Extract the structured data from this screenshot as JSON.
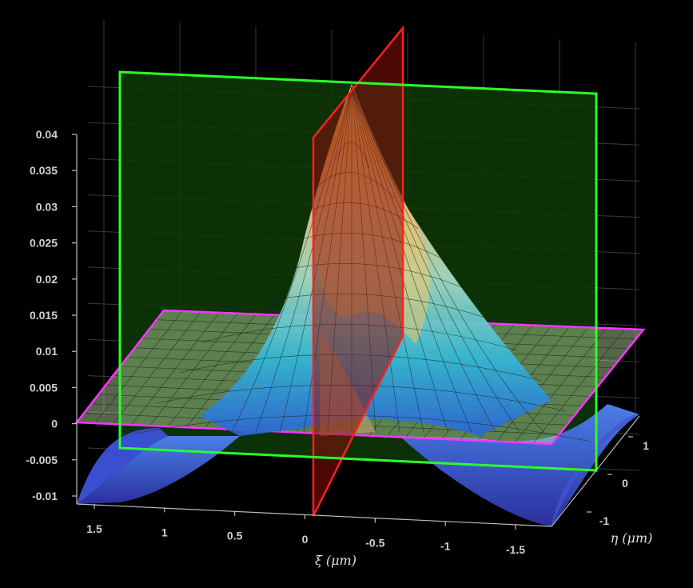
{
  "chart_data": {
    "type": "surface",
    "title": "",
    "xlabel": "ξ (μm)",
    "ylabel": "η (μm)",
    "zlabel": "",
    "x_ticks": [
      "1.5",
      "1",
      "0.5",
      "0",
      "-0.5",
      "-1",
      "-1.5"
    ],
    "y_ticks": [
      "1",
      "0",
      "-1"
    ],
    "z_ticks": [
      "0.04",
      "0.035",
      "0.03",
      "0.025",
      "0.02",
      "0.015",
      "0.01",
      "0.005",
      "0",
      "-0.005",
      "-0.01"
    ],
    "xlim": [
      1.7,
      -1.7
    ],
    "ylim": [
      -1.5,
      1.5
    ],
    "zlim": [
      -0.012,
      0.042
    ],
    "peak": {
      "xi": 0,
      "eta": 0,
      "value": 0.0415
    },
    "planes": [
      {
        "name": "xi = 0 plane",
        "color": "#ff2020"
      },
      {
        "name": "eta = 0 plane",
        "color": "#22ee22"
      },
      {
        "name": "z = 0 plane",
        "color": "#ff33ff"
      }
    ],
    "colormap": "parula",
    "grid": true
  }
}
